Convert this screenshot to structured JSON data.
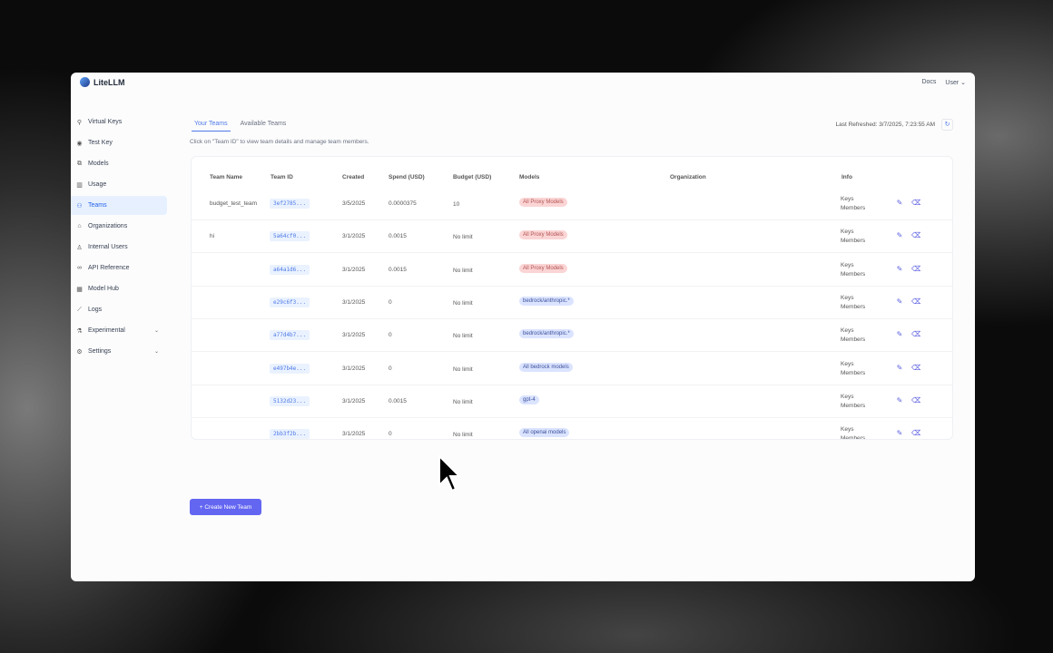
{
  "app": {
    "name": "LiteLLM"
  },
  "topbar": {
    "docs": "Docs",
    "user": "User"
  },
  "sidebar": {
    "items": [
      {
        "label": "Virtual Keys",
        "icon": "key-icon",
        "glyph": "⚲"
      },
      {
        "label": "Test Key",
        "icon": "play-circle-icon",
        "glyph": "◉"
      },
      {
        "label": "Models",
        "icon": "blocks-icon",
        "glyph": "⧉"
      },
      {
        "label": "Usage",
        "icon": "bar-chart-icon",
        "glyph": "▥"
      },
      {
        "label": "Teams",
        "icon": "team-icon",
        "glyph": "⚇",
        "active": true
      },
      {
        "label": "Organizations",
        "icon": "bank-icon",
        "glyph": "⌂"
      },
      {
        "label": "Internal Users",
        "icon": "user-icon",
        "glyph": "♙"
      },
      {
        "label": "API Reference",
        "icon": "link-icon",
        "glyph": "∞"
      },
      {
        "label": "Model Hub",
        "icon": "grid-icon",
        "glyph": "▦"
      },
      {
        "label": "Logs",
        "icon": "line-chart-icon",
        "glyph": "⟋"
      },
      {
        "label": "Experimental",
        "icon": "flask-icon",
        "glyph": "⚗",
        "expand": true
      },
      {
        "label": "Settings",
        "icon": "gear-icon",
        "glyph": "⚙",
        "expand": true
      }
    ]
  },
  "tabs": [
    "Your Teams",
    "Available Teams"
  ],
  "hint": "Click on \"Team ID\" to view team details and manage team members.",
  "last_refreshed": "Last Refreshed: 3/7/2025, 7:23:55 AM",
  "table": {
    "headers": [
      "Team Name",
      "Team ID",
      "Created",
      "Spend (USD)",
      "Budget (USD)",
      "Models",
      "Organization",
      "Info"
    ],
    "rows": [
      {
        "name": "budget_test_team",
        "id": "3ef2785...",
        "created": "3/5/2025",
        "spend": "0.0000375",
        "budget": "10",
        "model": "All Proxy Models",
        "tone": "red",
        "org": "",
        "info": [
          "Keys",
          "Members"
        ]
      },
      {
        "name": "hi",
        "id": "5a64cf0...",
        "created": "3/1/2025",
        "spend": "0.0015",
        "budget": "No limit",
        "model": "All Proxy Models",
        "tone": "red",
        "org": "",
        "info": [
          "Keys",
          "Members"
        ]
      },
      {
        "name": "",
        "id": "a64a1d6...",
        "created": "3/1/2025",
        "spend": "0.0015",
        "budget": "No limit",
        "model": "All Proxy Models",
        "tone": "red",
        "org": "",
        "info": [
          "Keys",
          "Members"
        ]
      },
      {
        "name": "",
        "id": "e29c6f3...",
        "created": "3/1/2025",
        "spend": "0",
        "budget": "No limit",
        "model": "bedrock/anthropic.*",
        "tone": "blue",
        "org": "",
        "info": [
          "Keys",
          "Members"
        ]
      },
      {
        "name": "",
        "id": "a77d4b7...",
        "created": "3/1/2025",
        "spend": "0",
        "budget": "No limit",
        "model": "bedrock/anthropic.*",
        "tone": "blue",
        "org": "",
        "info": [
          "Keys",
          "Members"
        ]
      },
      {
        "name": "",
        "id": "e497b4e...",
        "created": "3/1/2025",
        "spend": "0",
        "budget": "No limit",
        "model": "All bedrock models",
        "tone": "blue",
        "org": "",
        "info": [
          "Keys",
          "Members"
        ]
      },
      {
        "name": "",
        "id": "5132d23...",
        "created": "3/1/2025",
        "spend": "0.0015",
        "budget": "No limit",
        "model": "gpt-4",
        "tone": "blue",
        "org": "",
        "info": [
          "Keys",
          "Members"
        ]
      },
      {
        "name": "",
        "id": "2bb3f2b...",
        "created": "3/1/2025",
        "spend": "0",
        "budget": "No limit",
        "model": "All openai models",
        "tone": "blue",
        "org": "",
        "info": [
          "Keys",
          "Members"
        ]
      }
    ]
  },
  "create_button": "+ Create New Team"
}
